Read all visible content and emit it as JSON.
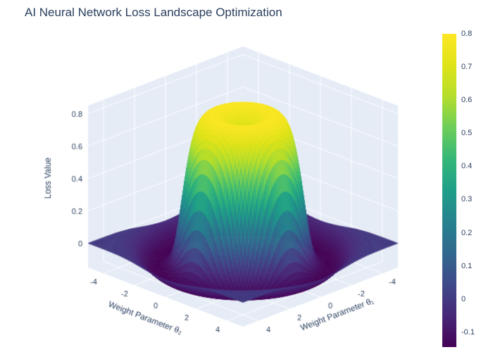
{
  "chart_data": {
    "type": "surface",
    "title": "AI Neural Network Loss Landscape Optimization",
    "x": {
      "label": "Weight Parameter θ₁",
      "range": [
        -5,
        5
      ],
      "ticks": [
        -4,
        -2,
        0,
        2,
        4
      ]
    },
    "y": {
      "label": "Weight Parameter θ₂",
      "range": [
        -5,
        5
      ],
      "ticks": [
        -4,
        -2,
        0,
        2,
        4
      ]
    },
    "z": {
      "label": "Loss Value",
      "range": [
        -0.15,
        0.85
      ],
      "ticks": [
        0,
        0.2,
        0.4,
        0.6,
        0.8
      ]
    },
    "surface": {
      "formula": "z = 0.8*exp(-(r/2.8)^8) - 0.12*exp(-(r/0.8)^2) - 0.145*exp(-((r-3.9)/1.0)^2), r = sqrt(x^2+y^2)",
      "plateau_amp": 0.8,
      "plateau_radius": 2.8,
      "plateau_power": 8,
      "crater_amp": 0.12,
      "crater_radius": 0.8,
      "moat_amp": 0.145,
      "moat_center": 3.9,
      "moat_width": 1.0,
      "grid_n": 80,
      "z_min": -0.145,
      "z_max": 0.8
    },
    "colorbar": {
      "ticks": [
        0.8,
        0.7,
        0.6,
        0.5,
        0.4,
        0.3,
        0.2,
        0.1,
        0,
        -0.1
      ],
      "cmin": -0.145,
      "cmax": 0.8
    },
    "colorscale": {
      "name": "Viridis",
      "stops": [
        [
          0.0,
          "#440154"
        ],
        [
          0.1,
          "#482878"
        ],
        [
          0.2,
          "#3e4a89"
        ],
        [
          0.3,
          "#31688e"
        ],
        [
          0.4,
          "#26828e"
        ],
        [
          0.5,
          "#1f9e89"
        ],
        [
          0.6,
          "#35b779"
        ],
        [
          0.7,
          "#6dcd59"
        ],
        [
          0.8,
          "#b4de2c"
        ],
        [
          0.9,
          "#dfe318"
        ],
        [
          1.0,
          "#fde725"
        ]
      ]
    },
    "pane_color": "#e5ecf6",
    "grid_color": "#ffffff",
    "text_color": "#2a3f5f"
  }
}
